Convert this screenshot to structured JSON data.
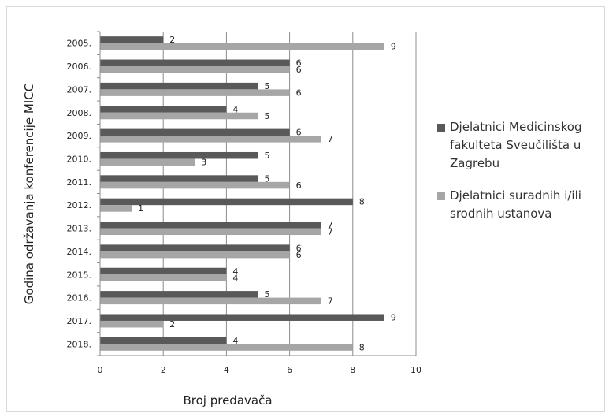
{
  "chart_data": {
    "type": "bar",
    "orientation": "horizontal",
    "categories": [
      "2005.",
      "2006.",
      "2007.",
      "2008.",
      "2009.",
      "2010.",
      "2011.",
      "2012.",
      "2013.",
      "2014.",
      "2015.",
      "2016.",
      "2017.",
      "2018."
    ],
    "series": [
      {
        "name": "Djelatnici Medicinskog fakulteta Sveučilišta u Zagrebu",
        "color": "#595959",
        "values": [
          2,
          6,
          5,
          4,
          6,
          5,
          5,
          8,
          7,
          6,
          4,
          5,
          9,
          4
        ]
      },
      {
        "name": "Djelatnici suradnih i/ili srodnih ustanova",
        "color": "#a6a6a6",
        "values": [
          9,
          6,
          6,
          5,
          7,
          3,
          6,
          1,
          7,
          6,
          4,
          7,
          2,
          8
        ]
      }
    ],
    "xlabel": "Broj predavača",
    "ylabel": "Godina održavanja konferencije MICC",
    "xlim": [
      0,
      10
    ],
    "xticks": [
      "0",
      "2",
      "4",
      "6",
      "8",
      "10"
    ],
    "grid": true,
    "legend_position": "right",
    "data_labels": true
  }
}
